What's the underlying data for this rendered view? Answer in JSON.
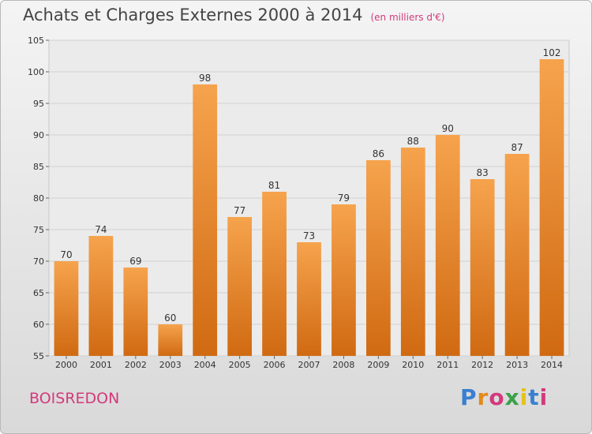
{
  "header": {
    "title": "Achats et Charges Externes 2000 à 2014",
    "unit": "(en milliers d'€)"
  },
  "footer": {
    "town": "BOISREDON",
    "logo": "Proxiti"
  },
  "colors": {
    "bar_light": "#f6a34d",
    "bar_dark": "#d06a12",
    "accent": "#d33a7c",
    "logo_letters": [
      "#3a7fd1",
      "#e38a1b",
      "#d33a7c",
      "#3aa14a",
      "#e3c21b",
      "#3a7fd1",
      "#d33a7c"
    ]
  },
  "chart_data": {
    "type": "bar",
    "title": "Achats et Charges Externes 2000 à 2014",
    "subtitle": "(en milliers d'€)",
    "xlabel": "",
    "ylabel": "",
    "categories": [
      "2000",
      "2001",
      "2002",
      "2003",
      "2004",
      "2005",
      "2006",
      "2007",
      "2008",
      "2009",
      "2010",
      "2011",
      "2012",
      "2013",
      "2014"
    ],
    "values": [
      70,
      74,
      69,
      60,
      98,
      77,
      81,
      73,
      79,
      86,
      88,
      90,
      83,
      87,
      102
    ],
    "ylim": [
      55,
      105
    ],
    "yticks": [
      55,
      60,
      65,
      70,
      75,
      80,
      85,
      90,
      95,
      100,
      105
    ],
    "grid": true,
    "legend": "none"
  }
}
